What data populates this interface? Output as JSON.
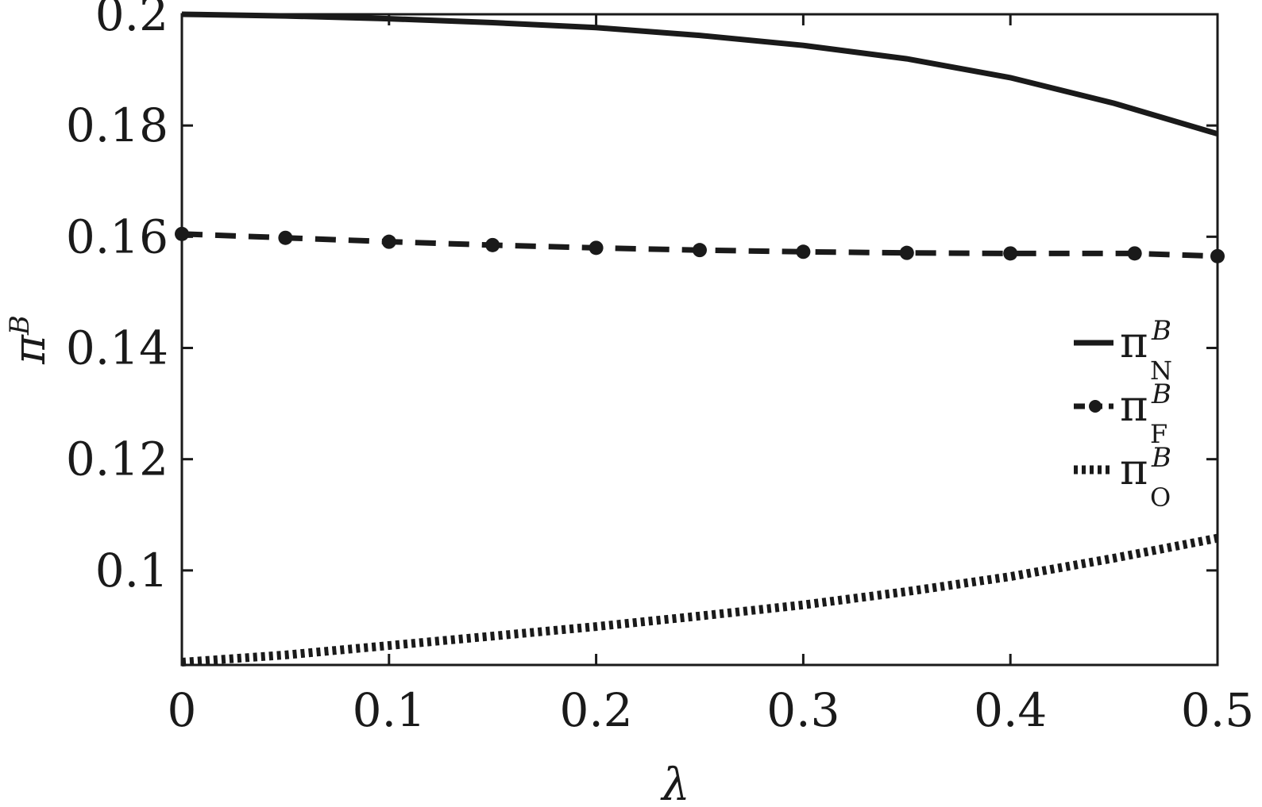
{
  "chart_data": {
    "type": "line",
    "xlabel": "λ",
    "ylabel_base": "π",
    "ylabel_sup": "B",
    "xlim": [
      0,
      0.5
    ],
    "ylim": [
      0.083,
      0.2
    ],
    "x_ticks": [
      0,
      0.1,
      0.2,
      0.3,
      0.4,
      0.5
    ],
    "x_tick_labels": [
      "0",
      "0.1",
      "0.2",
      "0.3",
      "0.4",
      "0.5"
    ],
    "y_ticks": [
      0.1,
      0.12,
      0.14,
      0.16,
      0.18,
      0.2
    ],
    "y_tick_labels": [
      "0.1",
      "0.12",
      "0.14",
      "0.16",
      "0.18",
      "0.2"
    ],
    "grid": false,
    "legend_position": "right",
    "series": [
      {
        "name": "π_N^B",
        "legend_base": "π",
        "legend_sup": "B",
        "legend_sub": "N",
        "style": "solid",
        "x": [
          0,
          0.05,
          0.1,
          0.15,
          0.2,
          0.25,
          0.3,
          0.35,
          0.4,
          0.45,
          0.5
        ],
        "y": [
          0.2,
          0.1997,
          0.1992,
          0.1985,
          0.1976,
          0.1962,
          0.1944,
          0.192,
          0.1886,
          0.184,
          0.1785
        ]
      },
      {
        "name": "π_F^B",
        "legend_base": "π",
        "legend_sup": "B",
        "legend_sub": "F",
        "style": "dashed-marker",
        "x": [
          0,
          0.05,
          0.1,
          0.15,
          0.2,
          0.25,
          0.3,
          0.35,
          0.4,
          0.46,
          0.5
        ],
        "y": [
          0.1605,
          0.1598,
          0.1591,
          0.1585,
          0.158,
          0.1576,
          0.1573,
          0.1571,
          0.157,
          0.157,
          0.1565
        ]
      },
      {
        "name": "π_O^B",
        "legend_base": "π",
        "legend_sup": "B",
        "legend_sub": "O",
        "style": "dotted",
        "x": [
          0,
          0.05,
          0.1,
          0.15,
          0.2,
          0.25,
          0.3,
          0.35,
          0.4,
          0.45,
          0.5
        ],
        "y": [
          0.0835,
          0.0848,
          0.0865,
          0.0882,
          0.0899,
          0.0918,
          0.0938,
          0.0962,
          0.0989,
          0.1022,
          0.1058
        ]
      }
    ]
  }
}
